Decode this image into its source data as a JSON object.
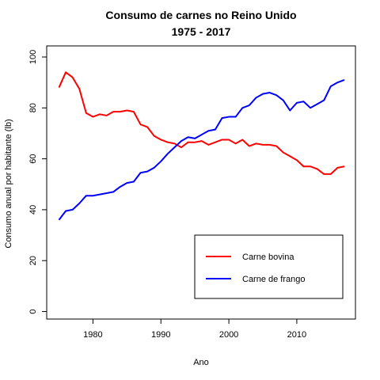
{
  "chart_data": {
    "type": "line",
    "title": "Consumo de carnes no Reino Unido",
    "subtitle": "1975 - 2017",
    "xlabel": "Ano",
    "ylabel": "Consumo anual por habitante (lb)",
    "xlim": [
      1975,
      2017
    ],
    "ylim": [
      0,
      100
    ],
    "x_ticks": [
      1980,
      1990,
      2000,
      2010
    ],
    "y_ticks": [
      0,
      20,
      40,
      60,
      80,
      100
    ],
    "grid": false,
    "legend_position": "bottom-right",
    "x": [
      1975,
      1976,
      1977,
      1978,
      1979,
      1980,
      1981,
      1982,
      1983,
      1984,
      1985,
      1986,
      1987,
      1988,
      1989,
      1990,
      1991,
      1992,
      1993,
      1994,
      1995,
      1996,
      1997,
      1998,
      1999,
      2000,
      2001,
      2002,
      2003,
      2004,
      2005,
      2006,
      2007,
      2008,
      2009,
      2010,
      2011,
      2012,
      2013,
      2014,
      2015,
      2016,
      2017
    ],
    "series": [
      {
        "name": "Carne bovina",
        "color": "#ff0000",
        "values": [
          88,
          94,
          92,
          87.5,
          78,
          76.5,
          77.5,
          77,
          78.5,
          78.5,
          79,
          78.5,
          73.5,
          72.5,
          69,
          67.5,
          66.5,
          66,
          64.5,
          66.5,
          66.5,
          67,
          65.5,
          66.5,
          67.5,
          67.5,
          66,
          67.5,
          65,
          66,
          65.5,
          65.5,
          65,
          62.5,
          61,
          59.5,
          57,
          57,
          56,
          54,
          54,
          56.5,
          57
        ]
      },
      {
        "name": "Carne de frango",
        "color": "#0000ff",
        "values": [
          36,
          39.5,
          40,
          42.5,
          45.5,
          45.5,
          46,
          46.5,
          47,
          49,
          50.5,
          51,
          54.5,
          55,
          56.5,
          59,
          62,
          64.5,
          67,
          68.5,
          68,
          69.5,
          71,
          71.5,
          76,
          76.5,
          76.5,
          80,
          81,
          84,
          85.5,
          86,
          85,
          83,
          79,
          82,
          82.5,
          80,
          81.5,
          83,
          88.5,
          90,
          91
        ]
      }
    ]
  }
}
